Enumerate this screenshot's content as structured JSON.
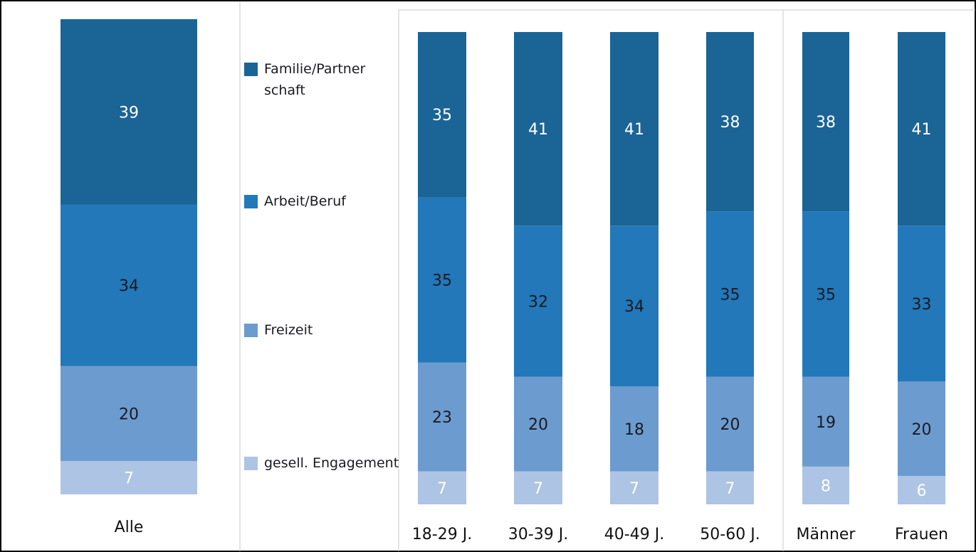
{
  "chart_data": {
    "type": "stacked_bar",
    "categories": [
      "Alle",
      "18-29 J.",
      "30-39 J.",
      "40-49 J.",
      "50-60 J.",
      "Männer",
      "Frauen"
    ],
    "series": [
      {
        "name": "gesell. Engagement",
        "color": "#adc4e4",
        "label_color": "#ffffff",
        "values": [
          7,
          7,
          7,
          7,
          7,
          8,
          6
        ]
      },
      {
        "name": "Freizeit",
        "color": "#6c9bcf",
        "label_color": "#1a1a22",
        "values": [
          20,
          23,
          20,
          18,
          20,
          19,
          20
        ]
      },
      {
        "name": "Arbeit/Beruf",
        "color": "#2278b8",
        "label_color": "#1a1a22",
        "values": [
          34,
          35,
          32,
          34,
          35,
          35,
          33
        ]
      },
      {
        "name": "Familie/Partner schaft",
        "color": "#1b6496",
        "label_color": "#ffffff",
        "values": [
          39,
          35,
          41,
          41,
          38,
          38,
          41
        ]
      }
    ],
    "ylim": [
      0,
      100
    ]
  }
}
